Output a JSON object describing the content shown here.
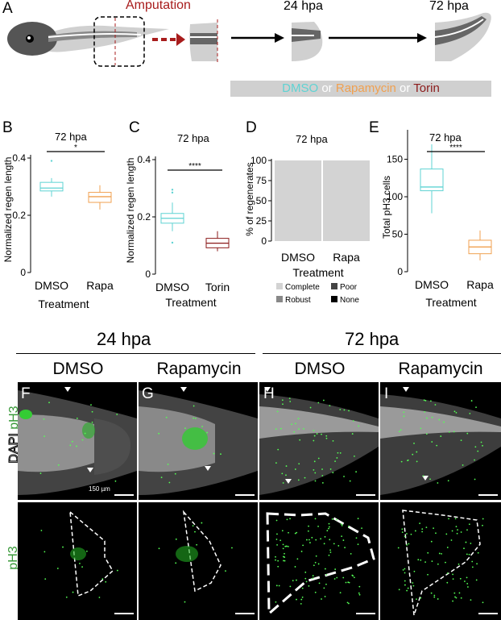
{
  "panel_a": {
    "letter": "A",
    "amputation": "Amputation",
    "t24": "24 hpa",
    "t72": "72 hpa",
    "treat_dmso": "DMSO",
    "treat_or1": " or ",
    "treat_rapa": "Rapamycin",
    "treat_or2": " or ",
    "treat_torin": "Torin",
    "colors": {
      "dmso": "#5fd3d3",
      "rapa": "#f0a050",
      "torin": "#8b1a1a",
      "amputation": "#a81c1c"
    }
  },
  "panel_b": {
    "letter": "B",
    "title": "72 hpa",
    "ylabel": "Normalized regen length",
    "xlabel": "Treatment",
    "sig": "*"
  },
  "panel_c": {
    "letter": "C",
    "title": "72 hpa",
    "ylabel": "Normalized regen length",
    "xlabel": "Treatment",
    "sig": "****"
  },
  "panel_d": {
    "letter": "D",
    "title": "72 hpa",
    "ylabel": "% of regenerates",
    "xlabel": "Treatment",
    "legend": [
      "Complete",
      "Poor",
      "Robust",
      "None"
    ]
  },
  "panel_e": {
    "letter": "E",
    "title": "72 hpa",
    "ylabel": "Total pH3 cells",
    "xlabel": "Treatment",
    "sig": "****"
  },
  "chart_data": [
    {
      "type": "box",
      "panel": "B",
      "title": "72 hpa",
      "ylabel": "Normalized regen length",
      "xlabel": "Treatment",
      "categories": [
        "DMSO",
        "Rapa"
      ],
      "ylim": [
        0,
        0.4
      ],
      "yticks": [
        "0",
        "0.2",
        "0.4"
      ],
      "boxes": [
        {
          "q1": 0.285,
          "median": 0.295,
          "q3": 0.315,
          "min": 0.265,
          "max": 0.33,
          "outliers": [
            0.39
          ]
        },
        {
          "q1": 0.245,
          "median": 0.265,
          "q3": 0.28,
          "min": 0.22,
          "max": 0.305,
          "outliers": []
        }
      ]
    },
    {
      "type": "box",
      "panel": "C",
      "title": "72 hpa",
      "ylabel": "Normalized regen length",
      "xlabel": "Treatment",
      "categories": [
        "DMSO",
        "Torin"
      ],
      "ylim": [
        0,
        0.4
      ],
      "yticks": [
        "0",
        "0.2",
        "0.4"
      ],
      "boxes": [
        {
          "q1": 0.178,
          "median": 0.195,
          "q3": 0.212,
          "min": 0.15,
          "max": 0.25,
          "outliers": [
            0.295,
            0.285,
            0.11
          ]
        },
        {
          "q1": 0.092,
          "median": 0.108,
          "q3": 0.125,
          "min": 0.08,
          "max": 0.15,
          "outliers": []
        }
      ]
    },
    {
      "type": "bar",
      "panel": "D",
      "title": "72 hpa",
      "ylabel": "% of regenerates",
      "xlabel": "Treatment",
      "categories": [
        "DMSO",
        "Rapa"
      ],
      "ylim": [
        0,
        100
      ],
      "yticks": [
        "0",
        "25",
        "50",
        "75",
        "100"
      ],
      "series": [
        {
          "name": "Complete",
          "values": [
            100,
            100
          ]
        }
      ]
    },
    {
      "type": "box",
      "panel": "E",
      "title": "72 hpa",
      "ylabel": "Total pH3 cells",
      "xlabel": "Treatment",
      "categories": [
        "DMSO",
        "Rapa"
      ],
      "ylim": [
        0,
        185
      ],
      "yticks": [
        "0",
        "50",
        "100",
        "150"
      ],
      "boxes": [
        {
          "q1": 108,
          "median": 113,
          "q3": 137,
          "min": 78,
          "max": 170,
          "outliers": []
        },
        {
          "q1": 24,
          "median": 33,
          "q3": 42,
          "min": 15,
          "max": 55,
          "outliers": []
        }
      ]
    }
  ],
  "micro": {
    "h24": "24 hpa",
    "h72": "72 hpa",
    "cols": [
      "DMSO",
      "Rapamycin",
      "DMSO",
      "Rapamycin"
    ],
    "letters": [
      "F",
      "G",
      "H",
      "I"
    ],
    "row_label_top_a": "pH3",
    "row_label_top_b": "DAPI",
    "row_label_bottom": "pH3",
    "scale": "150 µm"
  }
}
